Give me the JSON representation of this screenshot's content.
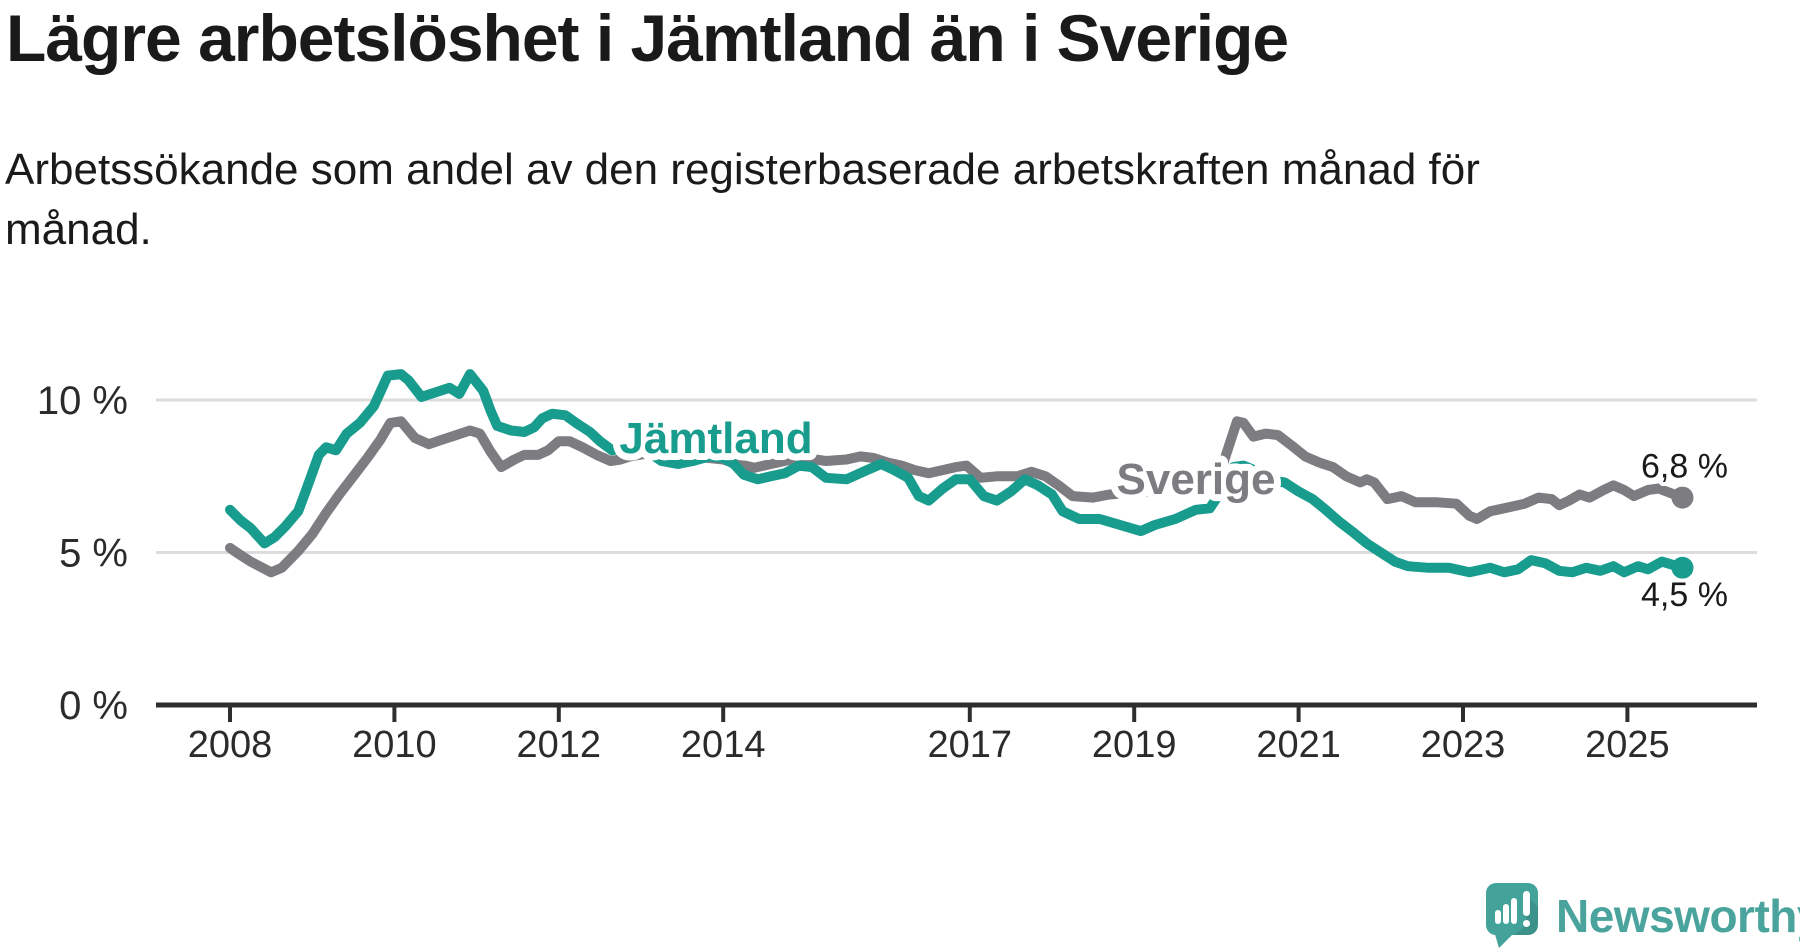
{
  "header": {
    "title": "Lägre arbetslöshet i Jämtland än i Sverige",
    "subtitle_line1": "Arbetssökande som andel av den registerbaserade arbetskraften månad för",
    "subtitle_line2": "månad."
  },
  "footer": {
    "brand": "Newsworthy",
    "brand_color": "#4aa49d",
    "logo_icon": "speech-bubble-bar-chart"
  },
  "chart_data": {
    "type": "line",
    "title": "Lägre arbetslöshet i Jämtland än i Sverige",
    "subtitle": "Arbetssökande som andel av den registerbaserade arbetskraften månad för månad.",
    "x_unit": "year",
    "x_range": [
      2008.0,
      2025.67
    ],
    "ylim": [
      0,
      11.5
    ],
    "grid": "horizontal",
    "legend_position": "inline-labels",
    "yticks": [
      {
        "value": 0,
        "label": "0 %"
      },
      {
        "value": 5,
        "label": "5 %"
      },
      {
        "value": 10,
        "label": "10 %"
      }
    ],
    "xticks": [
      {
        "value": 2008,
        "label": "2008"
      },
      {
        "value": 2010,
        "label": "2010"
      },
      {
        "value": 2012,
        "label": "2012"
      },
      {
        "value": 2014,
        "label": "2014"
      },
      {
        "value": 2017,
        "label": "2017"
      },
      {
        "value": 2019,
        "label": "2019"
      },
      {
        "value": 2021,
        "label": "2021"
      },
      {
        "value": 2023,
        "label": "2023"
      },
      {
        "value": 2025,
        "label": "2025"
      }
    ],
    "colors": {
      "jamtland": "#189c8e",
      "sverige": "#7c7c81",
      "axis": "#2e2e2e",
      "gridline": "#dcdcdc",
      "end_label_text": "#1a1a1a"
    },
    "series": [
      {
        "name": "Sverige",
        "color": "#7c7c81",
        "end_label": "6,8 %",
        "end_value": 6.8,
        "points": [
          [
            2008.0,
            5.15
          ],
          [
            2008.08,
            5.0
          ],
          [
            2008.25,
            4.7
          ],
          [
            2008.5,
            4.35
          ],
          [
            2008.63,
            4.5
          ],
          [
            2008.83,
            5.05
          ],
          [
            2009.0,
            5.6
          ],
          [
            2009.17,
            6.3
          ],
          [
            2009.33,
            6.9
          ],
          [
            2009.5,
            7.5
          ],
          [
            2009.67,
            8.1
          ],
          [
            2009.83,
            8.7
          ],
          [
            2009.95,
            9.25
          ],
          [
            2010.08,
            9.3
          ],
          [
            2010.25,
            8.75
          ],
          [
            2010.42,
            8.55
          ],
          [
            2010.58,
            8.7
          ],
          [
            2010.75,
            8.85
          ],
          [
            2010.92,
            9.0
          ],
          [
            2011.04,
            8.9
          ],
          [
            2011.17,
            8.3
          ],
          [
            2011.3,
            7.8
          ],
          [
            2011.46,
            8.05
          ],
          [
            2011.58,
            8.2
          ],
          [
            2011.75,
            8.2
          ],
          [
            2011.87,
            8.35
          ],
          [
            2012.0,
            8.65
          ],
          [
            2012.13,
            8.65
          ],
          [
            2012.29,
            8.45
          ],
          [
            2012.46,
            8.2
          ],
          [
            2012.63,
            8.0
          ],
          [
            2012.75,
            8.05
          ],
          [
            2012.87,
            8.15
          ],
          [
            2013.08,
            8.25
          ],
          [
            2013.33,
            8.2
          ],
          [
            2013.58,
            8.15
          ],
          [
            2013.83,
            8.1
          ],
          [
            2014.0,
            8.05
          ],
          [
            2014.17,
            7.9
          ],
          [
            2014.38,
            7.78
          ],
          [
            2014.58,
            7.9
          ],
          [
            2014.83,
            8.05
          ],
          [
            2015.0,
            8.1
          ],
          [
            2015.25,
            8.0
          ],
          [
            2015.5,
            8.05
          ],
          [
            2015.67,
            8.15
          ],
          [
            2015.83,
            8.1
          ],
          [
            2016.0,
            7.95
          ],
          [
            2016.17,
            7.85
          ],
          [
            2016.33,
            7.7
          ],
          [
            2016.5,
            7.6
          ],
          [
            2016.67,
            7.7
          ],
          [
            2016.83,
            7.8
          ],
          [
            2016.96,
            7.85
          ],
          [
            2017.13,
            7.45
          ],
          [
            2017.33,
            7.5
          ],
          [
            2017.58,
            7.5
          ],
          [
            2017.75,
            7.65
          ],
          [
            2017.92,
            7.5
          ],
          [
            2018.08,
            7.2
          ],
          [
            2018.25,
            6.85
          ],
          [
            2018.5,
            6.8
          ],
          [
            2018.7,
            6.9
          ],
          [
            2018.92,
            6.95
          ],
          [
            2019.17,
            7.0
          ],
          [
            2019.42,
            7.05
          ],
          [
            2019.67,
            7.15
          ],
          [
            2019.92,
            7.3
          ],
          [
            2020.08,
            7.9
          ],
          [
            2020.25,
            9.3
          ],
          [
            2020.33,
            9.25
          ],
          [
            2020.45,
            8.8
          ],
          [
            2020.6,
            8.9
          ],
          [
            2020.75,
            8.85
          ],
          [
            2020.92,
            8.5
          ],
          [
            2021.08,
            8.15
          ],
          [
            2021.25,
            7.95
          ],
          [
            2021.42,
            7.8
          ],
          [
            2021.58,
            7.5
          ],
          [
            2021.75,
            7.3
          ],
          [
            2021.83,
            7.4
          ],
          [
            2021.92,
            7.3
          ],
          [
            2022.08,
            6.75
          ],
          [
            2022.25,
            6.85
          ],
          [
            2022.42,
            6.65
          ],
          [
            2022.67,
            6.65
          ],
          [
            2022.92,
            6.6
          ],
          [
            2023.08,
            6.2
          ],
          [
            2023.17,
            6.1
          ],
          [
            2023.33,
            6.35
          ],
          [
            2023.5,
            6.45
          ],
          [
            2023.75,
            6.6
          ],
          [
            2023.92,
            6.8
          ],
          [
            2024.08,
            6.75
          ],
          [
            2024.17,
            6.55
          ],
          [
            2024.29,
            6.7
          ],
          [
            2024.42,
            6.9
          ],
          [
            2024.54,
            6.8
          ],
          [
            2024.71,
            7.05
          ],
          [
            2024.83,
            7.2
          ],
          [
            2024.96,
            7.05
          ],
          [
            2025.08,
            6.85
          ],
          [
            2025.25,
            7.05
          ],
          [
            2025.38,
            7.1
          ],
          [
            2025.67,
            6.8
          ]
        ]
      },
      {
        "name": "Jämtland",
        "color": "#189c8e",
        "end_label": "4,5 %",
        "end_value": 4.5,
        "points": [
          [
            2008.0,
            6.4
          ],
          [
            2008.13,
            6.05
          ],
          [
            2008.25,
            5.8
          ],
          [
            2008.42,
            5.3
          ],
          [
            2008.54,
            5.5
          ],
          [
            2008.67,
            5.85
          ],
          [
            2008.83,
            6.35
          ],
          [
            2008.92,
            7.0
          ],
          [
            2009.0,
            7.6
          ],
          [
            2009.08,
            8.2
          ],
          [
            2009.17,
            8.45
          ],
          [
            2009.29,
            8.35
          ],
          [
            2009.42,
            8.9
          ],
          [
            2009.58,
            9.25
          ],
          [
            2009.75,
            9.8
          ],
          [
            2009.92,
            10.8
          ],
          [
            2010.08,
            10.85
          ],
          [
            2010.17,
            10.65
          ],
          [
            2010.33,
            10.1
          ],
          [
            2010.5,
            10.25
          ],
          [
            2010.67,
            10.4
          ],
          [
            2010.79,
            10.2
          ],
          [
            2010.92,
            10.85
          ],
          [
            2011.08,
            10.3
          ],
          [
            2011.17,
            9.65
          ],
          [
            2011.25,
            9.15
          ],
          [
            2011.42,
            9.0
          ],
          [
            2011.58,
            8.95
          ],
          [
            2011.7,
            9.1
          ],
          [
            2011.8,
            9.4
          ],
          [
            2011.92,
            9.55
          ],
          [
            2012.08,
            9.5
          ],
          [
            2012.21,
            9.25
          ],
          [
            2012.38,
            8.95
          ],
          [
            2012.5,
            8.65
          ],
          [
            2012.65,
            8.35
          ],
          [
            2012.79,
            8.45
          ],
          [
            2012.92,
            8.6
          ],
          [
            2013.08,
            8.3
          ],
          [
            2013.25,
            8.0
          ],
          [
            2013.45,
            7.9
          ],
          [
            2013.63,
            8.0
          ],
          [
            2013.83,
            8.15
          ],
          [
            2014.0,
            8.1
          ],
          [
            2014.13,
            7.9
          ],
          [
            2014.25,
            7.55
          ],
          [
            2014.42,
            7.4
          ],
          [
            2014.58,
            7.5
          ],
          [
            2014.75,
            7.6
          ],
          [
            2014.92,
            7.85
          ],
          [
            2015.08,
            7.8
          ],
          [
            2015.25,
            7.45
          ],
          [
            2015.5,
            7.4
          ],
          [
            2015.75,
            7.7
          ],
          [
            2015.92,
            7.9
          ],
          [
            2016.08,
            7.7
          ],
          [
            2016.25,
            7.45
          ],
          [
            2016.38,
            6.85
          ],
          [
            2016.5,
            6.7
          ],
          [
            2016.67,
            7.1
          ],
          [
            2016.83,
            7.4
          ],
          [
            2017.0,
            7.4
          ],
          [
            2017.17,
            6.85
          ],
          [
            2017.33,
            6.7
          ],
          [
            2017.5,
            7.0
          ],
          [
            2017.67,
            7.4
          ],
          [
            2017.83,
            7.2
          ],
          [
            2018.0,
            6.9
          ],
          [
            2018.13,
            6.35
          ],
          [
            2018.33,
            6.1
          ],
          [
            2018.58,
            6.1
          ],
          [
            2018.83,
            5.9
          ],
          [
            2019.08,
            5.7
          ],
          [
            2019.25,
            5.9
          ],
          [
            2019.5,
            6.1
          ],
          [
            2019.75,
            6.4
          ],
          [
            2019.92,
            6.45
          ],
          [
            2020.08,
            7.1
          ],
          [
            2020.21,
            7.8
          ],
          [
            2020.33,
            7.85
          ],
          [
            2020.46,
            7.7
          ],
          [
            2020.58,
            7.4
          ],
          [
            2020.83,
            7.3
          ],
          [
            2021.0,
            7.0
          ],
          [
            2021.17,
            6.75
          ],
          [
            2021.33,
            6.4
          ],
          [
            2021.5,
            6.0
          ],
          [
            2021.67,
            5.65
          ],
          [
            2021.83,
            5.3
          ],
          [
            2022.0,
            5.0
          ],
          [
            2022.17,
            4.7
          ],
          [
            2022.33,
            4.55
          ],
          [
            2022.58,
            4.5
          ],
          [
            2022.83,
            4.5
          ],
          [
            2023.08,
            4.35
          ],
          [
            2023.33,
            4.5
          ],
          [
            2023.5,
            4.35
          ],
          [
            2023.67,
            4.45
          ],
          [
            2023.83,
            4.75
          ],
          [
            2024.0,
            4.65
          ],
          [
            2024.17,
            4.4
          ],
          [
            2024.33,
            4.35
          ],
          [
            2024.5,
            4.5
          ],
          [
            2024.67,
            4.4
          ],
          [
            2024.83,
            4.55
          ],
          [
            2024.96,
            4.35
          ],
          [
            2025.13,
            4.55
          ],
          [
            2025.25,
            4.45
          ],
          [
            2025.42,
            4.7
          ],
          [
            2025.67,
            4.5
          ]
        ]
      }
    ]
  }
}
